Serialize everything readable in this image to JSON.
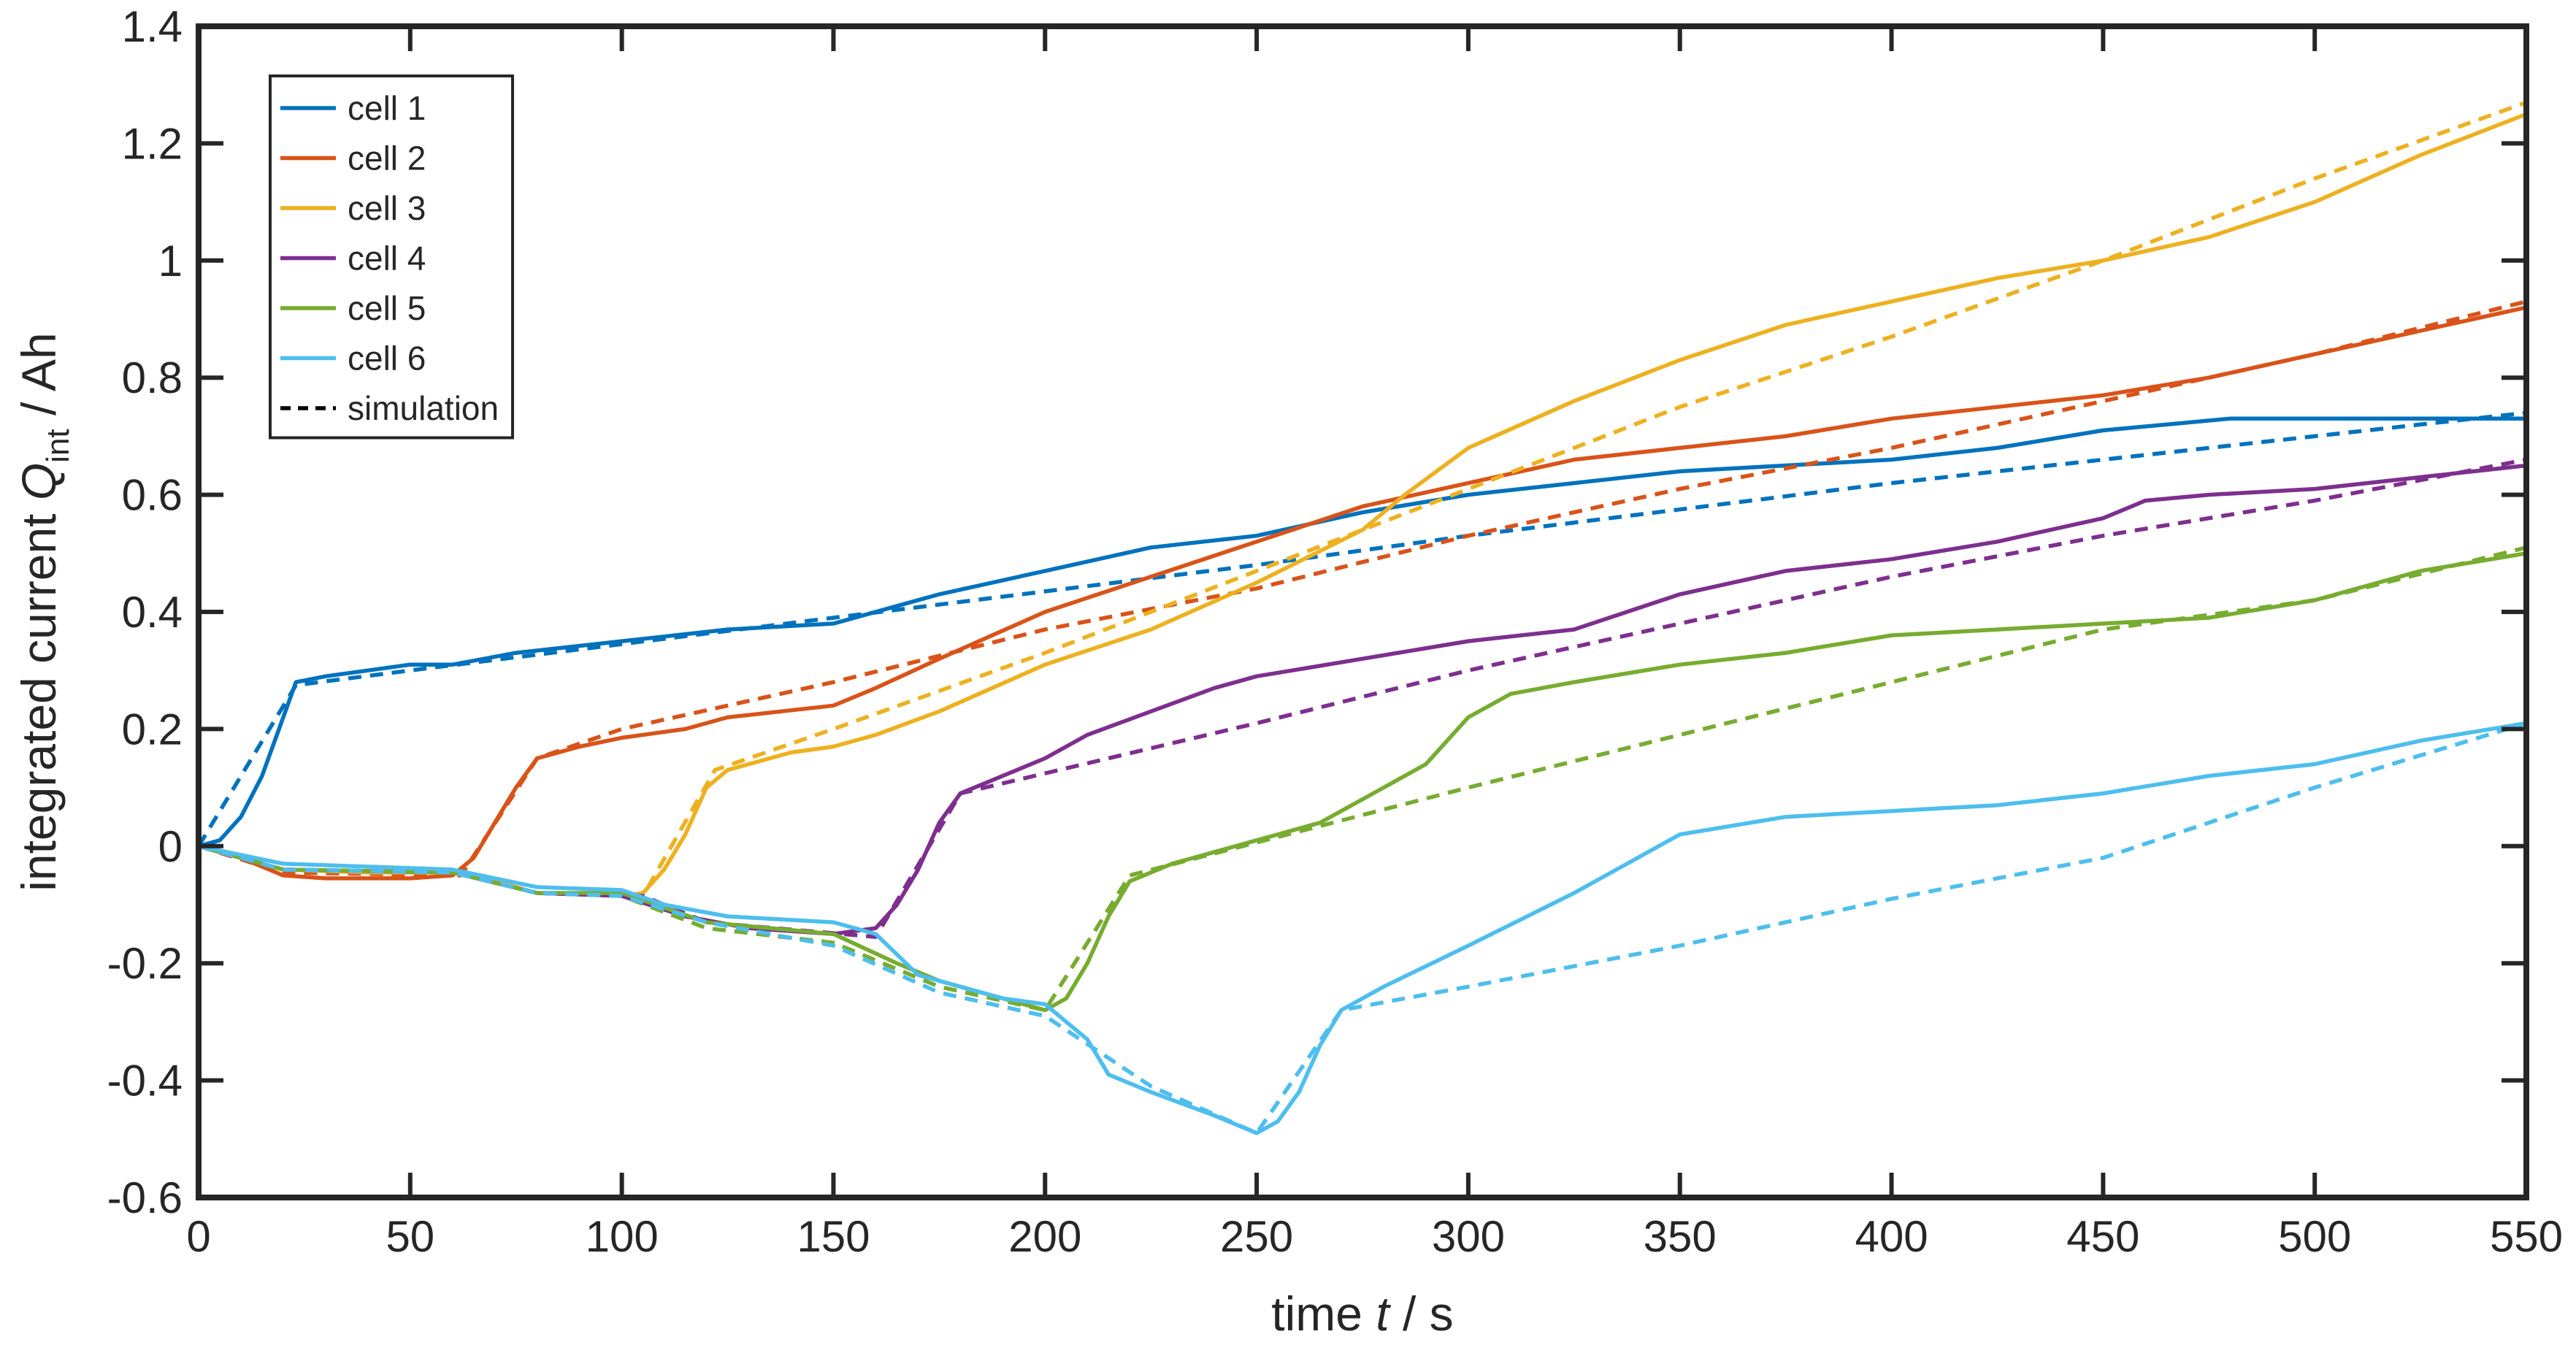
{
  "chart_data": {
    "type": "line",
    "xlabel": {
      "prefix": "time ",
      "var": "t",
      "suffix": " / s"
    },
    "ylabel": {
      "prefix": "integrated current ",
      "var": "Q",
      "sub": "int",
      "suffix": " / Ah"
    },
    "xlim": [
      0,
      550
    ],
    "ylim": [
      -0.6,
      1.4
    ],
    "xticks": [
      0,
      50,
      100,
      150,
      200,
      250,
      300,
      350,
      400,
      450,
      500,
      550
    ],
    "xtick_labels": [
      "0",
      "50",
      "100",
      "150",
      "200",
      "250",
      "300",
      "350",
      "400",
      "450",
      "500",
      "550"
    ],
    "yticks": [
      -0.6,
      -0.4,
      -0.2,
      0,
      0.2,
      0.4,
      0.6,
      0.8,
      1,
      1.2,
      1.4
    ],
    "ytick_labels": [
      "-0.6",
      "-0.4",
      "-0.2",
      "0",
      "0.2",
      "0.4",
      "0.6",
      "0.8",
      "1",
      "1.2",
      "1.4"
    ],
    "grid": false,
    "legend_position": "top-left",
    "legend": [
      {
        "label": "cell 1",
        "color": "#0072BD",
        "dash": false
      },
      {
        "label": "cell 2",
        "color": "#D95319",
        "dash": false
      },
      {
        "label": "cell 3",
        "color": "#EDB120",
        "dash": false
      },
      {
        "label": "cell 4",
        "color": "#7E2F8E",
        "dash": false
      },
      {
        "label": "cell 5",
        "color": "#77AC30",
        "dash": false
      },
      {
        "label": "cell 6",
        "color": "#4DBEEE",
        "dash": false
      },
      {
        "label": "simulation",
        "color": "#000000",
        "dash": true
      }
    ],
    "series": [
      {
        "name": "cell 1",
        "color": "#0072BD",
        "measured": [
          [
            0,
            0
          ],
          [
            5,
            0.01
          ],
          [
            10,
            0.05
          ],
          [
            15,
            0.12
          ],
          [
            20,
            0.22
          ],
          [
            23,
            0.28
          ],
          [
            30,
            0.29
          ],
          [
            40,
            0.3
          ],
          [
            50,
            0.31
          ],
          [
            60,
            0.31
          ],
          [
            75,
            0.33
          ],
          [
            100,
            0.35
          ],
          [
            125,
            0.37
          ],
          [
            150,
            0.38
          ],
          [
            175,
            0.43
          ],
          [
            200,
            0.47
          ],
          [
            225,
            0.51
          ],
          [
            250,
            0.53
          ],
          [
            275,
            0.57
          ],
          [
            300,
            0.6
          ],
          [
            325,
            0.62
          ],
          [
            350,
            0.64
          ],
          [
            375,
            0.65
          ],
          [
            400,
            0.66
          ],
          [
            425,
            0.68
          ],
          [
            450,
            0.71
          ],
          [
            465,
            0.72
          ],
          [
            480,
            0.73
          ],
          [
            500,
            0.73
          ],
          [
            550,
            0.73
          ]
        ],
        "simulation": [
          [
            0,
            0
          ],
          [
            23,
            0.275
          ],
          [
            50,
            0.3
          ],
          [
            100,
            0.345
          ],
          [
            150,
            0.39
          ],
          [
            200,
            0.435
          ],
          [
            250,
            0.48
          ],
          [
            300,
            0.53
          ],
          [
            350,
            0.575
          ],
          [
            400,
            0.62
          ],
          [
            450,
            0.66
          ],
          [
            500,
            0.7
          ],
          [
            550,
            0.74
          ]
        ]
      },
      {
        "name": "cell 2",
        "color": "#D95319",
        "measured": [
          [
            0,
            0
          ],
          [
            10,
            -0.02
          ],
          [
            20,
            -0.05
          ],
          [
            30,
            -0.055
          ],
          [
            40,
            -0.055
          ],
          [
            50,
            -0.055
          ],
          [
            60,
            -0.05
          ],
          [
            65,
            -0.02
          ],
          [
            70,
            0.04
          ],
          [
            75,
            0.1
          ],
          [
            80,
            0.15
          ],
          [
            90,
            0.17
          ],
          [
            100,
            0.185
          ],
          [
            115,
            0.2
          ],
          [
            125,
            0.22
          ],
          [
            150,
            0.24
          ],
          [
            160,
            0.27
          ],
          [
            175,
            0.32
          ],
          [
            200,
            0.4
          ],
          [
            225,
            0.46
          ],
          [
            250,
            0.52
          ],
          [
            275,
            0.58
          ],
          [
            300,
            0.62
          ],
          [
            325,
            0.66
          ],
          [
            350,
            0.68
          ],
          [
            375,
            0.7
          ],
          [
            400,
            0.73
          ],
          [
            425,
            0.75
          ],
          [
            450,
            0.77
          ],
          [
            475,
            0.8
          ],
          [
            500,
            0.84
          ],
          [
            525,
            0.88
          ],
          [
            550,
            0.92
          ]
        ],
        "simulation": [
          [
            0,
            0
          ],
          [
            20,
            -0.045
          ],
          [
            62,
            -0.05
          ],
          [
            80,
            0.15
          ],
          [
            100,
            0.2
          ],
          [
            150,
            0.28
          ],
          [
            200,
            0.37
          ],
          [
            250,
            0.44
          ],
          [
            300,
            0.53
          ],
          [
            350,
            0.61
          ],
          [
            400,
            0.68
          ],
          [
            450,
            0.76
          ],
          [
            500,
            0.84
          ],
          [
            550,
            0.93
          ]
        ]
      },
      {
        "name": "cell 3",
        "color": "#EDB120",
        "measured": [
          [
            0,
            0
          ],
          [
            20,
            -0.04
          ],
          [
            40,
            -0.045
          ],
          [
            60,
            -0.045
          ],
          [
            70,
            -0.06
          ],
          [
            80,
            -0.08
          ],
          [
            100,
            -0.085
          ],
          [
            105,
            -0.08
          ],
          [
            110,
            -0.04
          ],
          [
            115,
            0.02
          ],
          [
            120,
            0.1
          ],
          [
            125,
            0.13
          ],
          [
            140,
            0.16
          ],
          [
            150,
            0.17
          ],
          [
            160,
            0.19
          ],
          [
            175,
            0.23
          ],
          [
            200,
            0.31
          ],
          [
            225,
            0.37
          ],
          [
            250,
            0.45
          ],
          [
            275,
            0.54
          ],
          [
            285,
            0.6
          ],
          [
            300,
            0.68
          ],
          [
            325,
            0.76
          ],
          [
            350,
            0.83
          ],
          [
            375,
            0.89
          ],
          [
            400,
            0.93
          ],
          [
            425,
            0.97
          ],
          [
            450,
            1.0
          ],
          [
            475,
            1.04
          ],
          [
            500,
            1.1
          ],
          [
            525,
            1.18
          ],
          [
            550,
            1.25
          ]
        ],
        "simulation": [
          [
            0,
            0
          ],
          [
            20,
            -0.04
          ],
          [
            60,
            -0.045
          ],
          [
            80,
            -0.08
          ],
          [
            105,
            -0.085
          ],
          [
            122,
            0.13
          ],
          [
            150,
            0.2
          ],
          [
            200,
            0.33
          ],
          [
            250,
            0.47
          ],
          [
            300,
            0.61
          ],
          [
            350,
            0.75
          ],
          [
            400,
            0.87
          ],
          [
            450,
            1.0
          ],
          [
            500,
            1.14
          ],
          [
            550,
            1.27
          ]
        ]
      },
      {
        "name": "cell 4",
        "color": "#7E2F8E",
        "measured": [
          [
            0,
            0
          ],
          [
            20,
            -0.04
          ],
          [
            60,
            -0.045
          ],
          [
            80,
            -0.08
          ],
          [
            100,
            -0.085
          ],
          [
            115,
            -0.12
          ],
          [
            130,
            -0.14
          ],
          [
            150,
            -0.15
          ],
          [
            160,
            -0.14
          ],
          [
            165,
            -0.1
          ],
          [
            170,
            -0.04
          ],
          [
            175,
            0.04
          ],
          [
            180,
            0.09
          ],
          [
            190,
            0.12
          ],
          [
            200,
            0.15
          ],
          [
            210,
            0.19
          ],
          [
            225,
            0.23
          ],
          [
            240,
            0.27
          ],
          [
            250,
            0.29
          ],
          [
            275,
            0.32
          ],
          [
            300,
            0.35
          ],
          [
            325,
            0.37
          ],
          [
            350,
            0.43
          ],
          [
            375,
            0.47
          ],
          [
            400,
            0.49
          ],
          [
            425,
            0.52
          ],
          [
            450,
            0.56
          ],
          [
            460,
            0.59
          ],
          [
            475,
            0.6
          ],
          [
            500,
            0.61
          ],
          [
            525,
            0.63
          ],
          [
            550,
            0.65
          ]
        ],
        "simulation": [
          [
            0,
            0
          ],
          [
            20,
            -0.04
          ],
          [
            60,
            -0.045
          ],
          [
            80,
            -0.08
          ],
          [
            105,
            -0.085
          ],
          [
            120,
            -0.13
          ],
          [
            160,
            -0.155
          ],
          [
            180,
            0.09
          ],
          [
            250,
            0.21
          ],
          [
            300,
            0.3
          ],
          [
            350,
            0.38
          ],
          [
            400,
            0.46
          ],
          [
            450,
            0.53
          ],
          [
            500,
            0.59
          ],
          [
            550,
            0.66
          ]
        ]
      },
      {
        "name": "cell 5",
        "color": "#77AC30",
        "measured": [
          [
            0,
            0
          ],
          [
            20,
            -0.04
          ],
          [
            60,
            -0.045
          ],
          [
            80,
            -0.08
          ],
          [
            100,
            -0.08
          ],
          [
            120,
            -0.13
          ],
          [
            150,
            -0.15
          ],
          [
            165,
            -0.2
          ],
          [
            175,
            -0.23
          ],
          [
            190,
            -0.26
          ],
          [
            200,
            -0.28
          ],
          [
            205,
            -0.26
          ],
          [
            210,
            -0.2
          ],
          [
            215,
            -0.12
          ],
          [
            220,
            -0.06
          ],
          [
            230,
            -0.03
          ],
          [
            250,
            0.01
          ],
          [
            265,
            0.04
          ],
          [
            280,
            0.1
          ],
          [
            290,
            0.14
          ],
          [
            300,
            0.22
          ],
          [
            310,
            0.26
          ],
          [
            325,
            0.28
          ],
          [
            350,
            0.31
          ],
          [
            375,
            0.33
          ],
          [
            400,
            0.36
          ],
          [
            425,
            0.37
          ],
          [
            450,
            0.38
          ],
          [
            475,
            0.39
          ],
          [
            500,
            0.42
          ],
          [
            525,
            0.47
          ],
          [
            550,
            0.5
          ]
        ],
        "simulation": [
          [
            0,
            0
          ],
          [
            20,
            -0.04
          ],
          [
            60,
            -0.045
          ],
          [
            80,
            -0.08
          ],
          [
            100,
            -0.085
          ],
          [
            120,
            -0.14
          ],
          [
            150,
            -0.165
          ],
          [
            175,
            -0.24
          ],
          [
            200,
            -0.28
          ],
          [
            220,
            -0.05
          ],
          [
            300,
            0.1
          ],
          [
            350,
            0.19
          ],
          [
            400,
            0.28
          ],
          [
            450,
            0.37
          ],
          [
            500,
            0.42
          ],
          [
            550,
            0.51
          ]
        ]
      },
      {
        "name": "cell 6",
        "color": "#4DBEEE",
        "measured": [
          [
            0,
            0
          ],
          [
            20,
            -0.03
          ],
          [
            60,
            -0.04
          ],
          [
            80,
            -0.07
          ],
          [
            100,
            -0.075
          ],
          [
            110,
            -0.1
          ],
          [
            125,
            -0.12
          ],
          [
            150,
            -0.13
          ],
          [
            160,
            -0.15
          ],
          [
            170,
            -0.22
          ],
          [
            180,
            -0.24
          ],
          [
            190,
            -0.26
          ],
          [
            200,
            -0.27
          ],
          [
            210,
            -0.33
          ],
          [
            215,
            -0.39
          ],
          [
            225,
            -0.42
          ],
          [
            240,
            -0.46
          ],
          [
            250,
            -0.49
          ],
          [
            255,
            -0.47
          ],
          [
            260,
            -0.42
          ],
          [
            265,
            -0.34
          ],
          [
            270,
            -0.28
          ],
          [
            280,
            -0.24
          ],
          [
            300,
            -0.17
          ],
          [
            325,
            -0.08
          ],
          [
            350,
            0.02
          ],
          [
            375,
            0.05
          ],
          [
            400,
            0.06
          ],
          [
            425,
            0.07
          ],
          [
            450,
            0.09
          ],
          [
            475,
            0.12
          ],
          [
            500,
            0.14
          ],
          [
            525,
            0.18
          ],
          [
            550,
            0.21
          ]
        ],
        "simulation": [
          [
            0,
            0
          ],
          [
            20,
            -0.04
          ],
          [
            60,
            -0.045
          ],
          [
            80,
            -0.08
          ],
          [
            100,
            -0.085
          ],
          [
            120,
            -0.13
          ],
          [
            150,
            -0.17
          ],
          [
            175,
            -0.25
          ],
          [
            200,
            -0.29
          ],
          [
            225,
            -0.41
          ],
          [
            250,
            -0.49
          ],
          [
            270,
            -0.28
          ],
          [
            300,
            -0.24
          ],
          [
            350,
            -0.17
          ],
          [
            400,
            -0.09
          ],
          [
            450,
            -0.02
          ],
          [
            500,
            0.1
          ],
          [
            550,
            0.21
          ]
        ]
      }
    ]
  }
}
